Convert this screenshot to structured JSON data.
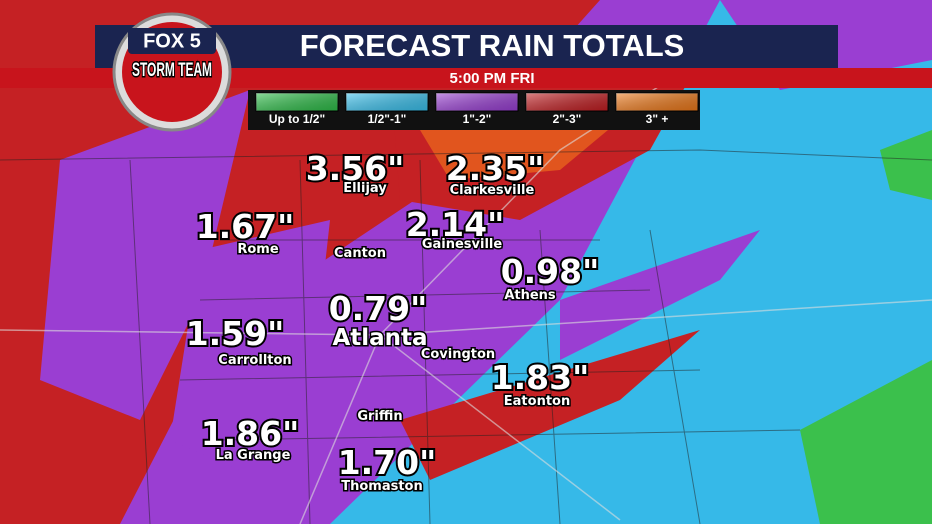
{
  "header": {
    "logo_top": "FOX 5",
    "logo_bottom": "STORM TEAM",
    "title": "FORECAST RAIN TOTALS",
    "time": "5:00 PM FRI"
  },
  "legend": [
    {
      "label": "Up to 1/2\"",
      "color": "#2fc04a"
    },
    {
      "label": "1/2\"-1\"",
      "color": "#3ac3f0"
    },
    {
      "label": "1\"-2\"",
      "color": "#9b3fd6"
    },
    {
      "label": "2\"-3\"",
      "color": "#c41e22"
    },
    {
      "label": "3\" +",
      "color": "#f07a1a"
    }
  ],
  "cities": [
    {
      "name": "Ellijay",
      "total": "3.56\""
    },
    {
      "name": "Clarkesville",
      "total": "2.35\""
    },
    {
      "name": "Rome",
      "total": "1.67\""
    },
    {
      "name": "Canton"
    },
    {
      "name": "Gainesville",
      "total": "2.14\""
    },
    {
      "name": "Athens",
      "total": "0.98\""
    },
    {
      "name": "Atlanta",
      "total": "0.79\""
    },
    {
      "name": "Carrollton",
      "total": "1.59\""
    },
    {
      "name": "Covington"
    },
    {
      "name": "Eatonton",
      "total": "1.83\""
    },
    {
      "name": "Griffin"
    },
    {
      "name": "La Grange",
      "total": "1.86\""
    },
    {
      "name": "Thomaston",
      "total": "1.70\""
    }
  ]
}
